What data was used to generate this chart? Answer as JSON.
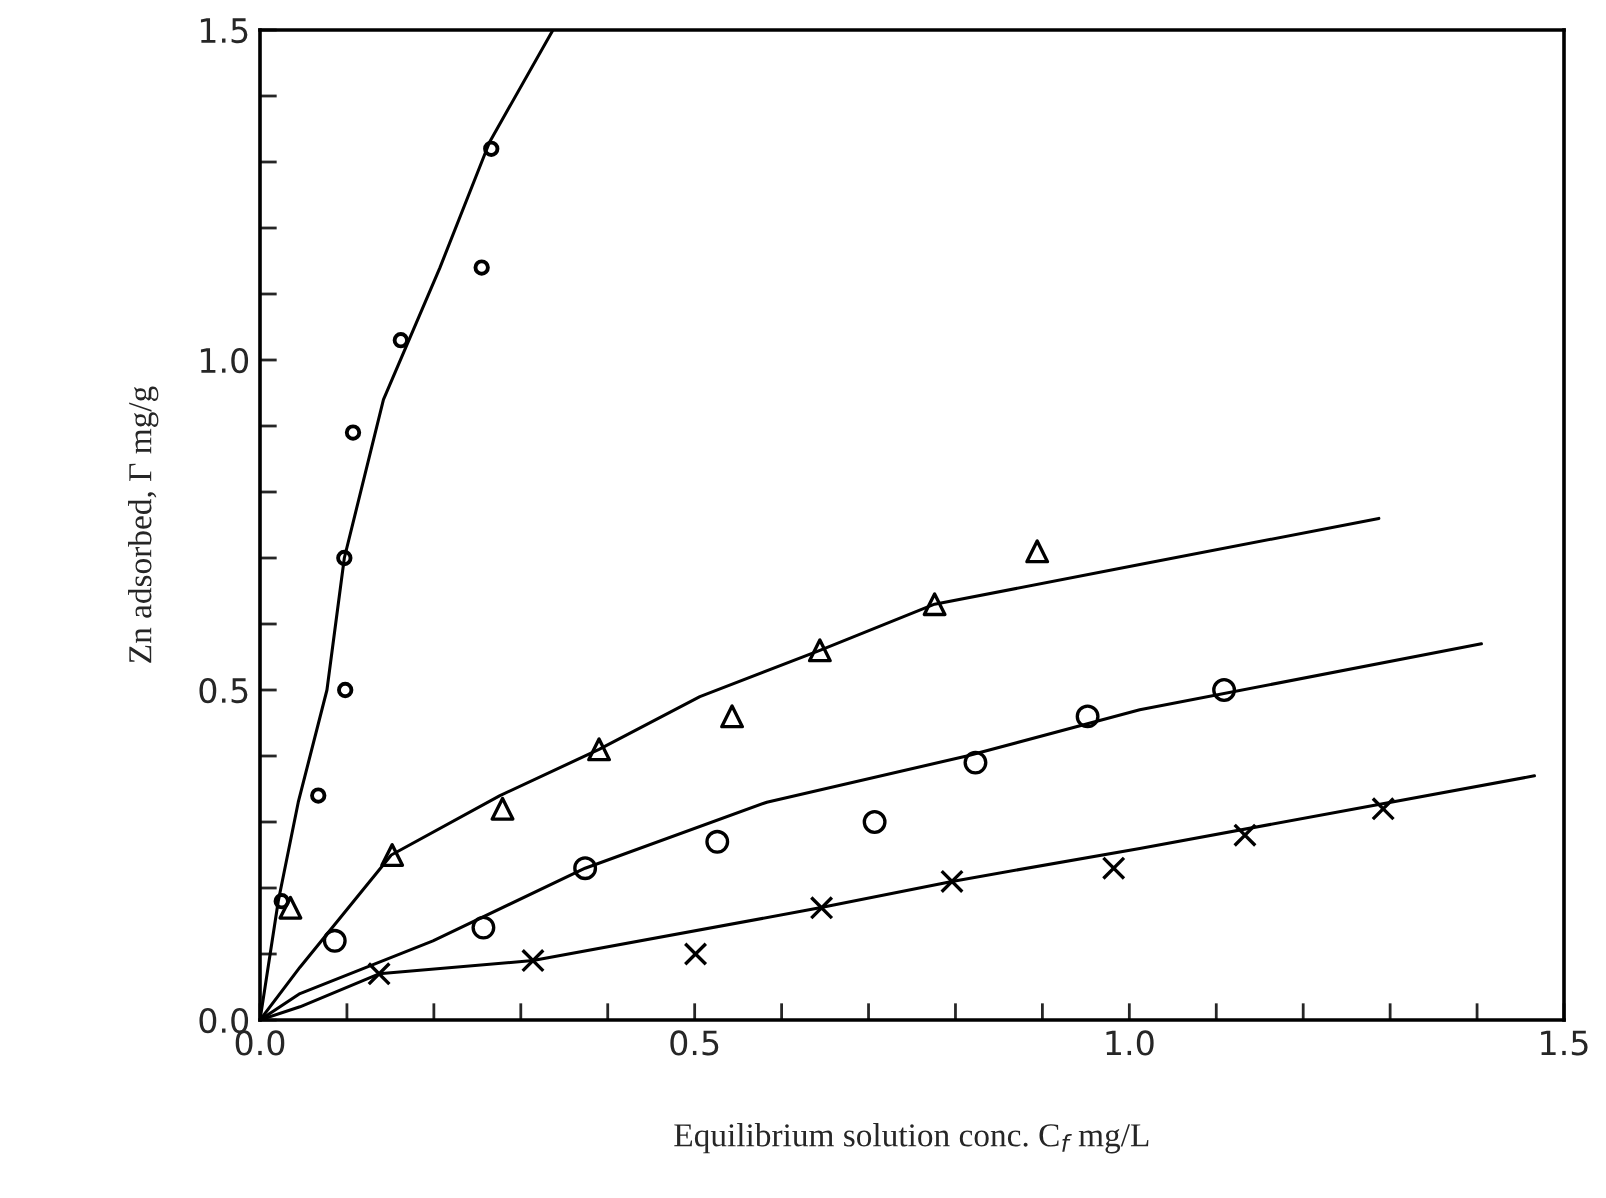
{
  "chart_data": {
    "type": "scatter",
    "xlabel": "Equilibrium solution conc. C$_{f}$ mg/L",
    "ylabel": "Zn adsorbed, Γ mg/g",
    "xlim": [
      0,
      1.5
    ],
    "ylim": [
      0,
      1.5
    ],
    "xticks": [
      {
        "value": 0,
        "label": "0.0"
      },
      {
        "value": 0.1,
        "label": null
      },
      {
        "value": 0.2,
        "label": null
      },
      {
        "value": 0.3,
        "label": null
      },
      {
        "value": 0.4,
        "label": null
      },
      {
        "value": 0.5,
        "label": "0.5"
      },
      {
        "value": 0.6,
        "label": null
      },
      {
        "value": 0.7,
        "label": null
      },
      {
        "value": 0.8,
        "label": null
      },
      {
        "value": 0.9,
        "label": null
      },
      {
        "value": 1.0,
        "label": "1.0"
      },
      {
        "value": 1.1,
        "label": null
      },
      {
        "value": 1.2,
        "label": null
      },
      {
        "value": 1.3,
        "label": null
      },
      {
        "value": 1.4,
        "label": null
      },
      {
        "value": 1.5,
        "label": "1.5"
      }
    ],
    "yticks": [
      {
        "value": 0,
        "label": "0.0"
      },
      {
        "value": 0.1,
        "label": null
      },
      {
        "value": 0.2,
        "label": null
      },
      {
        "value": 0.3,
        "label": null
      },
      {
        "value": 0.4,
        "label": null
      },
      {
        "value": 0.5,
        "label": "0.5"
      },
      {
        "value": 0.6,
        "label": null
      },
      {
        "value": 0.7,
        "label": null
      },
      {
        "value": 0.8,
        "label": null
      },
      {
        "value": 0.9,
        "label": null
      },
      {
        "value": 1.0,
        "label": "1.0"
      },
      {
        "value": 1.1,
        "label": null
      },
      {
        "value": 1.2,
        "label": null
      },
      {
        "value": 1.3,
        "label": null
      },
      {
        "value": 1.4,
        "label": null
      },
      {
        "value": 1.5,
        "label": "1.5"
      }
    ],
    "grid": false,
    "legend": false,
    "series": [
      {
        "marker": "circle",
        "color": "#000000",
        "x": [
          0.025,
          0.067,
          0.098,
          0.097,
          0.107,
          0.162,
          0.255,
          0.266
        ],
        "values": [
          0.18,
          0.34,
          0.5,
          0.7,
          0.89,
          1.03,
          1.14,
          1.32
        ]
      },
      {
        "marker": "triangle",
        "color": "#000000",
        "x": [
          0.035,
          0.152,
          0.279,
          0.39,
          0.543,
          0.644,
          0.776,
          0.894
        ],
        "values": [
          0.17,
          0.25,
          0.32,
          0.41,
          0.46,
          0.56,
          0.63,
          0.71
        ]
      },
      {
        "marker": "circle",
        "color": "#000000",
        "x": [
          0.086,
          0.257,
          0.374,
          0.526,
          0.707,
          0.823,
          0.952,
          1.109
        ],
        "values": [
          0.12,
          0.14,
          0.23,
          0.27,
          0.3,
          0.39,
          0.46,
          0.5
        ]
      },
      {
        "marker": "cross",
        "color": "#000000",
        "x": [
          0.137,
          0.314,
          0.501,
          0.646,
          0.796,
          0.982,
          1.133,
          1.292
        ],
        "values": [
          0.07,
          0.09,
          0.1,
          0.17,
          0.21,
          0.23,
          0.28,
          0.32
        ]
      },
      {
        "type": "line",
        "line_style": "solid",
        "color": "#000000",
        "x": [
          0,
          0.021,
          0.044,
          0.077,
          0.097,
          0.142,
          0.207,
          0.264,
          0.337
        ],
        "values": [
          0,
          0.18,
          0.33,
          0.5,
          0.7,
          0.94,
          1.14,
          1.33,
          1.5
        ]
      },
      {
        "type": "line",
        "line_style": "solid",
        "color": "#000000",
        "x": [
          0,
          0.046,
          0.151,
          0.276,
          0.39,
          0.506,
          0.644,
          0.776,
          1.012,
          1.287
        ],
        "values": [
          0,
          0.08,
          0.25,
          0.34,
          0.41,
          0.49,
          0.56,
          0.63,
          0.69,
          0.76
        ]
      },
      {
        "type": "line",
        "line_style": "solid",
        "color": "#000000",
        "x": [
          0,
          0.046,
          0.199,
          0.374,
          0.583,
          0.813,
          1.012,
          1.405
        ],
        "values": [
          0,
          0.04,
          0.12,
          0.23,
          0.33,
          0.4,
          0.47,
          0.57
        ]
      },
      {
        "type": "line",
        "line_style": "solid",
        "color": "#000000",
        "x": [
          0,
          0.046,
          0.137,
          0.314,
          0.644,
          0.796,
          1.012,
          1.466
        ],
        "values": [
          0,
          0.02,
          0.07,
          0.09,
          0.17,
          0.21,
          0.26,
          0.37
        ]
      }
    ]
  }
}
